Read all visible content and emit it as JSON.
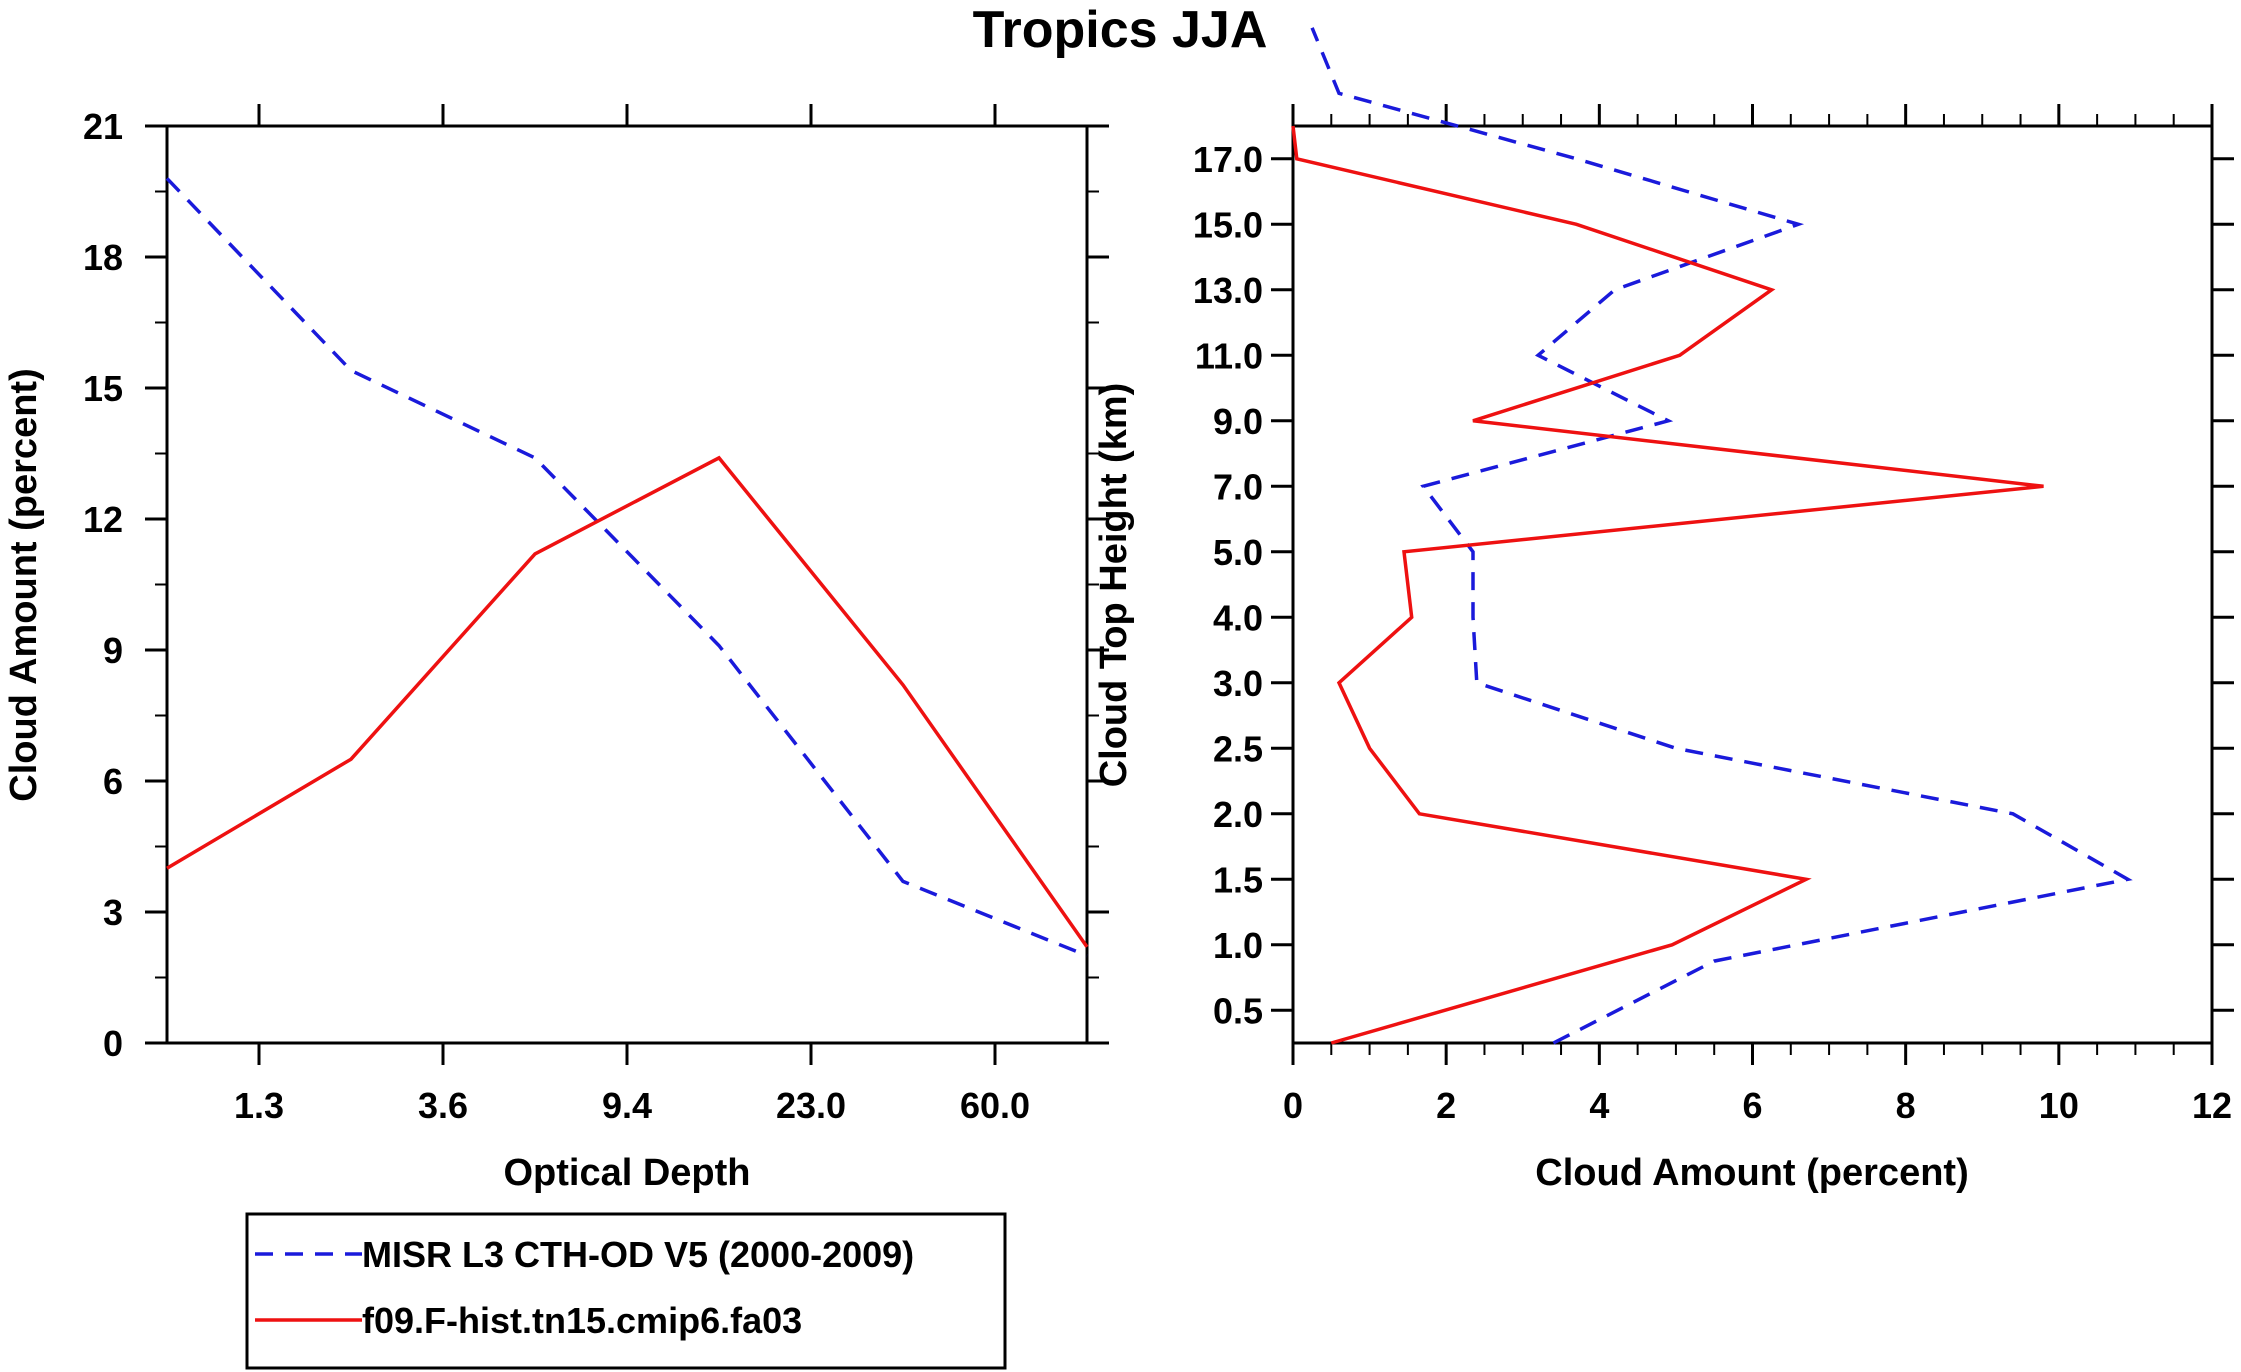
{
  "title": "Tropics JJA",
  "chart_data": [
    {
      "type": "line",
      "xlabel": "Optical Depth",
      "ylabel": "Cloud Amount (percent)",
      "x_tick_labels": [
        "1.3",
        "3.6",
        "9.4",
        "23.0",
        "60.0"
      ],
      "y_tick_labels": [
        "0",
        "3",
        "6",
        "9",
        "12",
        "15",
        "18",
        "21"
      ],
      "ylim": [
        0,
        21
      ],
      "series": [
        {
          "name": "MISR L3 CTH-OD V5 (2000-2009)",
          "color": "#1a1adb",
          "dash": "dashed",
          "x": [
            0,
            1,
            2,
            3,
            4,
            5
          ],
          "values": [
            19.8,
            15.4,
            13.4,
            9.1,
            3.7,
            2.0
          ]
        },
        {
          "name": "f09.F-hist.tn15.cmip6.fa03",
          "color": "#ee1111",
          "dash": "solid",
          "x": [
            0,
            1,
            2,
            3,
            4,
            5
          ],
          "values": [
            4.0,
            6.5,
            11.2,
            13.4,
            8.2,
            2.2
          ]
        }
      ]
    },
    {
      "type": "line",
      "xlabel": "Cloud Amount (percent)",
      "ylabel": "Cloud Top Height (km)",
      "x_tick_labels": [
        "0",
        "2",
        "4",
        "6",
        "8",
        "10",
        "12"
      ],
      "xlim": [
        0,
        12
      ],
      "y_tick_labels": [
        "0.5",
        "1.0",
        "1.5",
        "2.0",
        "2.5",
        "3.0",
        "4.0",
        "5.0",
        "7.0",
        "9.0",
        "11.0",
        "13.0",
        "15.0",
        "17.0"
      ],
      "series": [
        {
          "name": "MISR L3 CTH-OD V5 (2000-2009)",
          "color": "#1a1adb",
          "dash": "dashed",
          "x": [
            3.4,
            5.5,
            10.9,
            9.4,
            5.0,
            2.4,
            2.35,
            2.35,
            1.7,
            4.9,
            3.2,
            4.2,
            6.6,
            3.7,
            0.6,
            0.25
          ],
          "levels": [
            0,
            1.25,
            2.5,
            3.5,
            4.5,
            5.5,
            6.5,
            7.5,
            8.5,
            9.5,
            10.5,
            11.5,
            12.5,
            13.5,
            14.5,
            15.5
          ]
        },
        {
          "name": "f09.F-hist.tn15.cmip6.fa03",
          "color": "#ee1111",
          "dash": "solid",
          "x": [
            0.5,
            4.95,
            6.7,
            1.65,
            1.0,
            0.6,
            1.55,
            1.45,
            9.8,
            2.35,
            5.05,
            6.25,
            3.7,
            0.05,
            0.0
          ],
          "levels": [
            0,
            1.5,
            2.5,
            3.5,
            4.5,
            5.5,
            6.5,
            7.5,
            8.5,
            9.5,
            10.5,
            11.5,
            12.5,
            13.5,
            14
          ]
        }
      ]
    }
  ],
  "legend": [
    {
      "label": "MISR L3 CTH-OD V5 (2000-2009)",
      "color": "#1a1adb",
      "dash": "dashed"
    },
    {
      "label": "f09.F-hist.tn15.cmip6.fa03",
      "color": "#ee1111",
      "dash": "solid"
    }
  ]
}
